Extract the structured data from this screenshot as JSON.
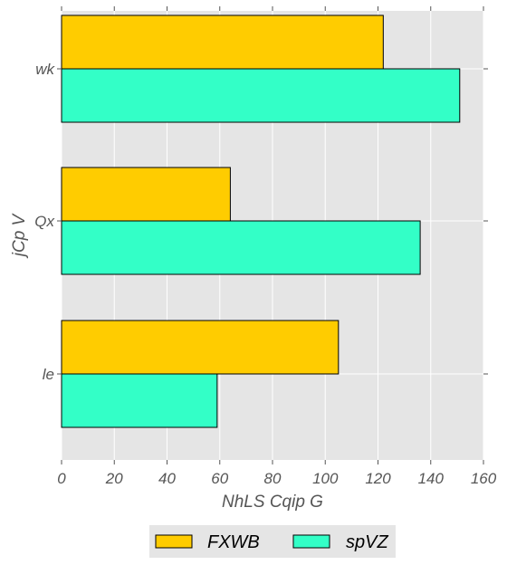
{
  "chart_data": {
    "type": "bar",
    "orientation": "horizontal",
    "title": "",
    "xlabel": "NhLS Cqip G",
    "ylabel": "jCp V",
    "categories": [
      "wk",
      "Qx",
      "le"
    ],
    "series": [
      {
        "name": "FXWB",
        "color": "#FFCC00",
        "values": [
          122,
          64,
          105
        ]
      },
      {
        "name": "spVZ",
        "color": "#33FFC7",
        "values": [
          151,
          136,
          59
        ]
      }
    ],
    "xlim": [
      0,
      160
    ],
    "xticks": [
      "0",
      "20",
      "40",
      "60",
      "80",
      "100",
      "120",
      "140",
      "160"
    ],
    "grid": true,
    "legend_position": "bottom-center",
    "plot_background": "#E5E5E5",
    "grid_color": "#FFFFFF"
  }
}
